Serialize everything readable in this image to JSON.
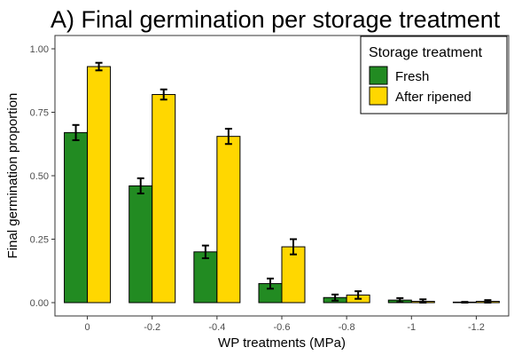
{
  "chart_data": {
    "type": "bar",
    "title": "A) Final germination per storage treatment",
    "xlabel": "WP treatments (MPa)",
    "ylabel": "Final germination proportion",
    "categories": [
      "0",
      "-0.2",
      "-0.4",
      "-0.6",
      "-0.8",
      "-1",
      "-1.2"
    ],
    "ylim": [
      0,
      1.05
    ],
    "yticks": [
      "0.00",
      "0.25",
      "0.50",
      "0.75",
      "1.00"
    ],
    "grid": false,
    "legend": {
      "title": "Storage treatment",
      "placement": "top-right"
    },
    "series": [
      {
        "name": "Fresh",
        "color": "#228B22",
        "values": [
          0.67,
          0.46,
          0.2,
          0.075,
          0.02,
          0.01,
          0.0
        ],
        "error": [
          0.03,
          0.03,
          0.025,
          0.02,
          0.012,
          0.008,
          0.003
        ]
      },
      {
        "name": "After ripened",
        "color": "#FFD700",
        "values": [
          0.93,
          0.82,
          0.655,
          0.22,
          0.03,
          0.005,
          0.005
        ],
        "error": [
          0.015,
          0.02,
          0.03,
          0.03,
          0.015,
          0.008,
          0.005
        ]
      }
    ]
  }
}
